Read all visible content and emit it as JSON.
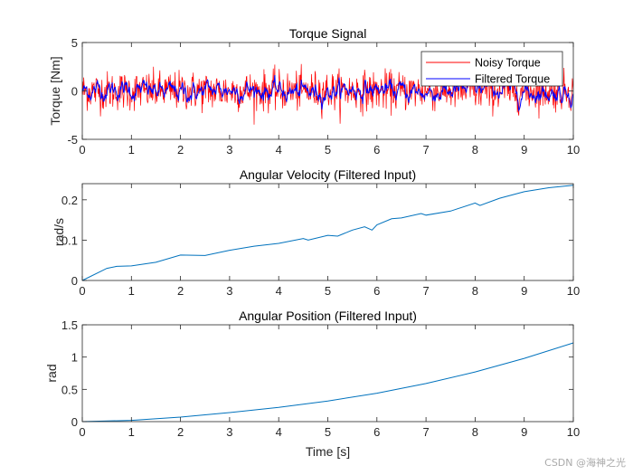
{
  "watermark": "CSDN @海神之光",
  "chart_data": [
    {
      "type": "line",
      "title": "Torque Signal",
      "xlabel": "",
      "ylabel": "Torque [Nm]",
      "xlim": [
        0,
        10
      ],
      "ylim": [
        -5,
        5
      ],
      "xticks": [
        "0",
        "1",
        "2",
        "3",
        "4",
        "5",
        "6",
        "7",
        "8",
        "9",
        "10"
      ],
      "yticks": [
        "-5",
        "0",
        "5"
      ],
      "grid": false,
      "legend": "top-right",
      "series": [
        {
          "name": "Noisy Torque",
          "color": "#ff0000"
        },
        {
          "name": "Filtered Torque",
          "color": "#0000ff"
        }
      ]
    },
    {
      "type": "line",
      "title": "Angular Velocity (Filtered Input)",
      "xlabel": "",
      "ylabel": "rad/s",
      "xlim": [
        0,
        10
      ],
      "ylim": [
        0,
        0.24
      ],
      "xticks": [
        "0",
        "1",
        "2",
        "3",
        "4",
        "5",
        "6",
        "7",
        "8",
        "9",
        "10"
      ],
      "yticks": [
        "0",
        "0.1",
        "0.2"
      ],
      "grid": false,
      "series": [
        {
          "color": "#0072bd",
          "x": [
            0,
            0.5,
            0.7,
            1,
            1.5,
            2,
            2.5,
            3,
            3.5,
            4,
            4.5,
            4.6,
            5,
            5.2,
            5.5,
            5.75,
            5.9,
            6,
            6.3,
            6.5,
            6.9,
            7,
            7.5,
            8,
            8.1,
            8.5,
            9,
            9.5,
            10
          ],
          "y": [
            0,
            0.03,
            0.035,
            0.036,
            0.045,
            0.063,
            0.062,
            0.075,
            0.085,
            0.092,
            0.104,
            0.1,
            0.112,
            0.11,
            0.125,
            0.133,
            0.125,
            0.138,
            0.153,
            0.155,
            0.166,
            0.162,
            0.172,
            0.192,
            0.186,
            0.204,
            0.22,
            0.23,
            0.236
          ]
        }
      ]
    },
    {
      "type": "line",
      "title": "Angular Position (Filtered Input)",
      "xlabel": "Time [s]",
      "ylabel": "rad",
      "xlim": [
        0,
        10
      ],
      "ylim": [
        0,
        1.5
      ],
      "xticks": [
        "0",
        "1",
        "2",
        "3",
        "4",
        "5",
        "6",
        "7",
        "8",
        "9",
        "10"
      ],
      "yticks": [
        "0",
        "0.5",
        "1",
        "1.5"
      ],
      "grid": false,
      "series": [
        {
          "color": "#0072bd",
          "x": [
            0,
            1,
            2,
            3,
            4,
            5,
            6,
            7,
            8,
            9,
            10
          ],
          "y": [
            0,
            0.02,
            0.07,
            0.14,
            0.22,
            0.32,
            0.44,
            0.59,
            0.77,
            0.98,
            1.22
          ]
        }
      ]
    }
  ]
}
